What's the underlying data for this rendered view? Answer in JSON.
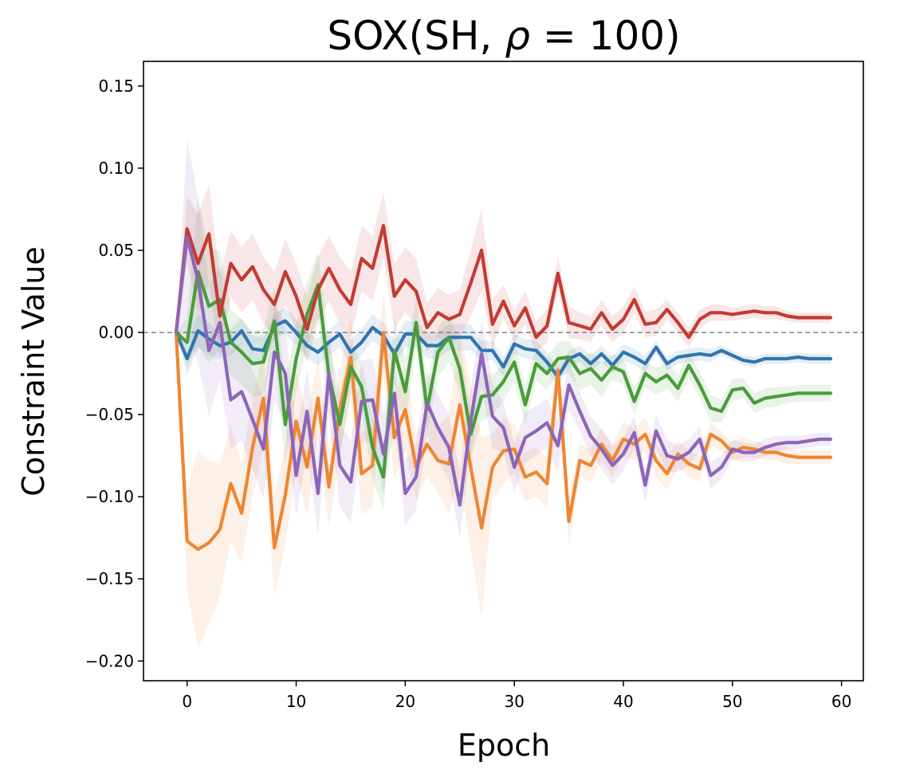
{
  "chart_data": {
    "type": "line",
    "title_prefix": "SOX(SH, ",
    "title_symbol": "ρ",
    "title_suffix": " =  100)",
    "xlabel": "Epoch",
    "ylabel": "Constraint Value",
    "xlim": [
      -4,
      62
    ],
    "ylim": [
      -0.212,
      0.165
    ],
    "xticks": [
      0,
      10,
      20,
      30,
      40,
      50,
      60
    ],
    "xtick_labels": [
      "0",
      "10",
      "20",
      "30",
      "40",
      "50",
      "60"
    ],
    "yticks": [
      -0.2,
      -0.15,
      -0.1,
      -0.05,
      0.0,
      0.05,
      0.1,
      0.15
    ],
    "ytick_labels": [
      "−0.20",
      "−0.15",
      "−0.10",
      "−0.05",
      "0.00",
      "0.05",
      "0.10",
      "0.15"
    ],
    "reference_line": {
      "y": 0.0,
      "style": "dashed",
      "color": "#808080"
    },
    "grid": false,
    "legend": "none",
    "x": [
      -1,
      0,
      1,
      2,
      3,
      4,
      5,
      6,
      7,
      8,
      9,
      10,
      11,
      12,
      13,
      14,
      15,
      16,
      17,
      18,
      19,
      20,
      21,
      22,
      23,
      24,
      25,
      26,
      27,
      28,
      29,
      30,
      31,
      32,
      33,
      34,
      35,
      36,
      37,
      38,
      39,
      40,
      41,
      42,
      43,
      44,
      45,
      46,
      47,
      48,
      49,
      50,
      51,
      52,
      53,
      54,
      55,
      56,
      57,
      58,
      59
    ],
    "series": [
      {
        "color": "#3274b0",
        "values": [
          0,
          -0.016,
          0.001,
          -0.004,
          -0.008,
          -0.006,
          0.001,
          -0.01,
          -0.011,
          0.004,
          0.007,
          0.0,
          -0.008,
          -0.012,
          -0.006,
          -0.001,
          -0.012,
          -0.006,
          0.003,
          -0.002,
          -0.013,
          -0.001,
          -0.001,
          -0.008,
          -0.008,
          -0.003,
          -0.003,
          -0.003,
          -0.011,
          -0.011,
          -0.021,
          -0.007,
          -0.01,
          -0.011,
          -0.018,
          -0.027,
          -0.016,
          -0.013,
          -0.019,
          -0.013,
          -0.02,
          -0.012,
          -0.015,
          -0.019,
          -0.009,
          -0.019,
          -0.015,
          -0.014,
          -0.013,
          -0.014,
          -0.011,
          -0.014,
          -0.017,
          -0.018,
          -0.016,
          -0.016,
          -0.016,
          -0.015,
          -0.016,
          -0.016,
          -0.016
        ],
        "band": [
          0,
          0.01,
          0.01,
          0.01,
          0.008,
          0.008,
          0.008,
          0.008,
          0.008,
          0.008,
          0.008,
          0.008,
          0.008,
          0.008,
          0.008,
          0.008,
          0.008,
          0.008,
          0.008,
          0.008,
          0.008,
          0.008,
          0.008,
          0.008,
          0.008,
          0.008,
          0.008,
          0.008,
          0.006,
          0.006,
          0.006,
          0.006,
          0.006,
          0.006,
          0.006,
          0.006,
          0.005,
          0.005,
          0.005,
          0.005,
          0.005,
          0.005,
          0.005,
          0.005,
          0.004,
          0.004,
          0.004,
          0.004,
          0.004,
          0.004,
          0.003,
          0.003,
          0.003,
          0.003,
          0.003,
          0.003,
          0.003,
          0.003,
          0.003,
          0.003,
          0.003
        ]
      },
      {
        "color": "#ee8632",
        "values": [
          0,
          -0.127,
          -0.132,
          -0.128,
          -0.12,
          -0.092,
          -0.11,
          -0.07,
          -0.04,
          -0.131,
          -0.099,
          -0.054,
          -0.082,
          -0.04,
          -0.094,
          -0.047,
          -0.015,
          -0.086,
          -0.081,
          0.0,
          -0.064,
          -0.047,
          -0.082,
          -0.068,
          -0.078,
          -0.08,
          -0.044,
          -0.082,
          -0.119,
          -0.082,
          -0.072,
          -0.071,
          -0.088,
          -0.085,
          -0.092,
          -0.023,
          -0.115,
          -0.078,
          -0.081,
          -0.068,
          -0.078,
          -0.065,
          -0.068,
          -0.062,
          -0.078,
          -0.086,
          -0.074,
          -0.08,
          -0.083,
          -0.062,
          -0.066,
          -0.073,
          -0.07,
          -0.071,
          -0.073,
          -0.073,
          -0.075,
          -0.076,
          -0.076,
          -0.076,
          -0.076
        ],
        "band": [
          0,
          0.03,
          0.06,
          0.05,
          0.04,
          0.035,
          0.03,
          0.03,
          0.03,
          0.03,
          0.03,
          0.03,
          0.03,
          0.025,
          0.025,
          0.025,
          0.025,
          0.025,
          0.025,
          0.025,
          0.025,
          0.025,
          0.02,
          0.02,
          0.02,
          0.03,
          0.045,
          0.05,
          0.055,
          0.02,
          0.02,
          0.015,
          0.015,
          0.015,
          0.015,
          0.015,
          0.015,
          0.01,
          0.01,
          0.01,
          0.01,
          0.01,
          0.01,
          0.01,
          0.01,
          0.01,
          0.008,
          0.008,
          0.008,
          0.007,
          0.006,
          0.006,
          0.006,
          0.005,
          0.005,
          0.005,
          0.005,
          0.004,
          0.004,
          0.004,
          0.004
        ]
      },
      {
        "color": "#4a9c3c",
        "values": [
          0,
          -0.006,
          0.037,
          0.016,
          0.02,
          -0.006,
          -0.012,
          -0.019,
          -0.018,
          0.007,
          -0.056,
          -0.016,
          0.011,
          0.029,
          -0.026,
          -0.056,
          -0.021,
          -0.033,
          -0.07,
          -0.088,
          -0.011,
          -0.036,
          0.006,
          -0.047,
          -0.012,
          -0.003,
          -0.022,
          -0.062,
          -0.039,
          -0.038,
          -0.03,
          -0.018,
          -0.044,
          -0.019,
          -0.025,
          -0.016,
          -0.015,
          -0.025,
          -0.022,
          -0.029,
          -0.021,
          -0.024,
          -0.042,
          -0.025,
          -0.03,
          -0.026,
          -0.034,
          -0.02,
          -0.032,
          -0.046,
          -0.048,
          -0.035,
          -0.034,
          -0.043,
          -0.04,
          -0.039,
          -0.038,
          -0.037,
          -0.037,
          -0.037,
          -0.037
        ],
        "band": [
          0,
          0.015,
          0.045,
          0.035,
          0.03,
          0.02,
          0.02,
          0.02,
          0.02,
          0.02,
          0.025,
          0.02,
          0.02,
          0.02,
          0.02,
          0.02,
          0.015,
          0.015,
          0.02,
          0.02,
          0.02,
          0.02,
          0.015,
          0.015,
          0.015,
          0.015,
          0.015,
          0.015,
          0.015,
          0.012,
          0.012,
          0.012,
          0.012,
          0.01,
          0.01,
          0.01,
          0.01,
          0.01,
          0.01,
          0.01,
          0.008,
          0.008,
          0.008,
          0.008,
          0.008,
          0.008,
          0.008,
          0.008,
          0.008,
          0.008,
          0.007,
          0.007,
          0.006,
          0.006,
          0.006,
          0.006,
          0.005,
          0.005,
          0.005,
          0.005,
          0.005
        ]
      },
      {
        "color": "#c23b34",
        "values": [
          0,
          0.063,
          0.042,
          0.06,
          0.01,
          0.042,
          0.032,
          0.04,
          0.026,
          0.017,
          0.037,
          0.022,
          0.002,
          0.026,
          0.039,
          0.026,
          0.017,
          0.045,
          0.039,
          0.065,
          0.022,
          0.032,
          0.025,
          0.003,
          0.012,
          0.008,
          0.011,
          0.03,
          0.05,
          0.005,
          0.019,
          0.004,
          0.015,
          -0.003,
          0.004,
          0.036,
          0.006,
          0.004,
          0.002,
          0.012,
          0.002,
          0.008,
          0.02,
          0.005,
          0.006,
          0.014,
          0.006,
          -0.003,
          0.008,
          0.012,
          0.012,
          0.011,
          0.012,
          0.013,
          0.012,
          0.012,
          0.01,
          0.009,
          0.009,
          0.009,
          0.009
        ],
        "band": [
          0,
          0.02,
          0.03,
          0.03,
          0.025,
          0.02,
          0.02,
          0.02,
          0.02,
          0.02,
          0.02,
          0.02,
          0.02,
          0.02,
          0.02,
          0.02,
          0.02,
          0.02,
          0.02,
          0.02,
          0.02,
          0.02,
          0.02,
          0.015,
          0.015,
          0.015,
          0.015,
          0.02,
          0.025,
          0.015,
          0.01,
          0.01,
          0.01,
          0.01,
          0.01,
          0.01,
          0.01,
          0.008,
          0.008,
          0.008,
          0.008,
          0.008,
          0.008,
          0.008,
          0.008,
          0.006,
          0.006,
          0.006,
          0.006,
          0.005,
          0.005,
          0.004,
          0.004,
          0.004,
          0.004,
          0.004,
          0.003,
          0.003,
          0.003,
          0.003,
          0.003
        ]
      },
      {
        "color": "#8c65b8",
        "values": [
          0,
          0.058,
          0.032,
          -0.011,
          0.006,
          -0.041,
          -0.036,
          -0.053,
          -0.071,
          -0.012,
          -0.025,
          -0.087,
          -0.048,
          -0.098,
          -0.025,
          -0.081,
          -0.091,
          -0.042,
          -0.041,
          -0.074,
          -0.037,
          -0.098,
          -0.088,
          -0.043,
          -0.058,
          -0.07,
          -0.105,
          -0.054,
          -0.013,
          -0.051,
          -0.058,
          -0.082,
          -0.064,
          -0.06,
          -0.055,
          -0.069,
          -0.032,
          -0.048,
          -0.063,
          -0.071,
          -0.081,
          -0.074,
          -0.061,
          -0.093,
          -0.06,
          -0.075,
          -0.077,
          -0.073,
          -0.065,
          -0.087,
          -0.082,
          -0.071,
          -0.073,
          -0.073,
          -0.07,
          -0.068,
          -0.067,
          -0.067,
          -0.066,
          -0.065,
          -0.065
        ],
        "band": [
          0,
          0.06,
          0.05,
          0.04,
          0.035,
          0.03,
          0.03,
          0.03,
          0.03,
          0.03,
          0.03,
          0.025,
          0.025,
          0.025,
          0.025,
          0.025,
          0.025,
          0.025,
          0.025,
          0.025,
          0.02,
          0.02,
          0.02,
          0.02,
          0.02,
          0.02,
          0.02,
          0.02,
          0.02,
          0.02,
          0.015,
          0.015,
          0.015,
          0.015,
          0.015,
          0.015,
          0.015,
          0.012,
          0.012,
          0.012,
          0.012,
          0.01,
          0.01,
          0.01,
          0.01,
          0.01,
          0.008,
          0.008,
          0.008,
          0.008,
          0.007,
          0.006,
          0.006,
          0.005,
          0.005,
          0.005,
          0.004,
          0.004,
          0.004,
          0.004,
          0.004
        ]
      }
    ]
  }
}
